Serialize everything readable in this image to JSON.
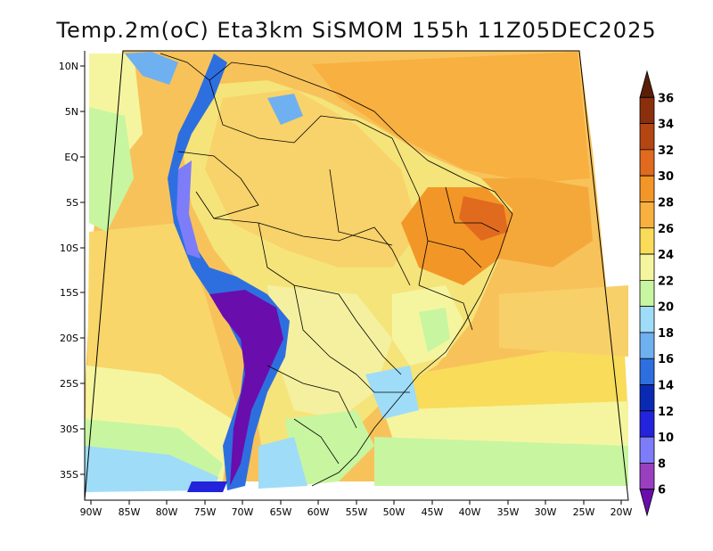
{
  "title": "Temp.2m(oC) Eta3km SiSMOM 155h 11Z05DEC2025",
  "lat_labels": [
    "10N",
    "5N",
    "EQ",
    "5S",
    "10S",
    "15S",
    "20S",
    "25S",
    "30S",
    "35S"
  ],
  "lon_labels": [
    "90W",
    "85W",
    "80W",
    "75W",
    "70W",
    "65W",
    "60W",
    "55W",
    "50W",
    "45W",
    "40W",
    "35W",
    "30W",
    "25W",
    "20W"
  ],
  "colorbar": {
    "labels": [
      "6",
      "8",
      "10",
      "12",
      "14",
      "16",
      "18",
      "20",
      "22",
      "24",
      "26",
      "28",
      "30",
      "32",
      "34",
      "36"
    ],
    "colors": [
      "#6a0dad",
      "#9a3fc0",
      "#7d7dfa",
      "#2323dc",
      "#0a2ab4",
      "#2e6fe0",
      "#6fb0f0",
      "#9fdcf8",
      "#c8f5a0",
      "#f5f5a0",
      "#f8dc5a",
      "#f8b040",
      "#f39628",
      "#e06a1e",
      "#b44614",
      "#8a2f0c",
      "#5a1e08"
    ]
  }
}
